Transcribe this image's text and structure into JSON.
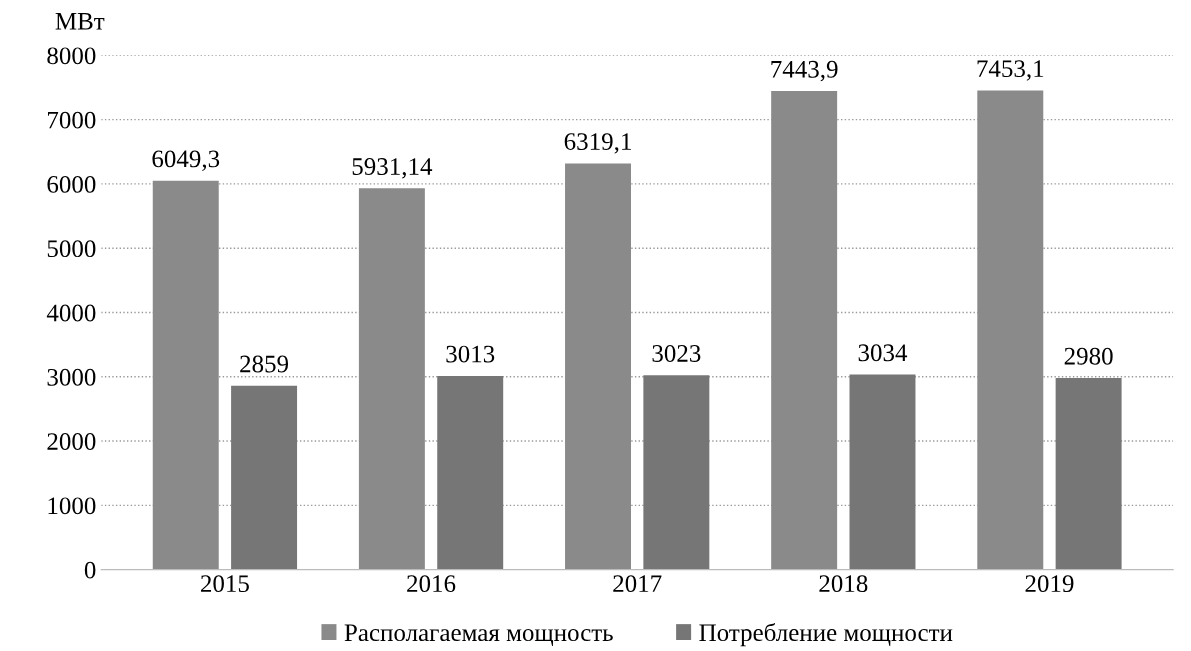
{
  "chart_data": {
    "type": "bar",
    "ylabel": "МВт",
    "categories": [
      "2015",
      "2016",
      "2017",
      "2018",
      "2019"
    ],
    "series": [
      {
        "name": "Располагаемая мощность",
        "color": "#8a8a8a",
        "values": [
          6049.3,
          5931.14,
          6319.1,
          7443.9,
          7453.1
        ],
        "value_labels": [
          "6049,3",
          "5931,14",
          "6319,1",
          "7443,9",
          "7453,1"
        ]
      },
      {
        "name": "Потребление мощности",
        "color": "#767676",
        "values": [
          2859,
          3013,
          3023,
          3034,
          2980
        ],
        "value_labels": [
          "2859",
          "3013",
          "3023",
          "3034",
          "2980"
        ]
      }
    ],
    "ylim": [
      0,
      8000
    ],
    "yticks": [
      0,
      1000,
      2000,
      3000,
      4000,
      5000,
      6000,
      7000,
      8000
    ],
    "grid": "y",
    "legend": "bottom"
  }
}
